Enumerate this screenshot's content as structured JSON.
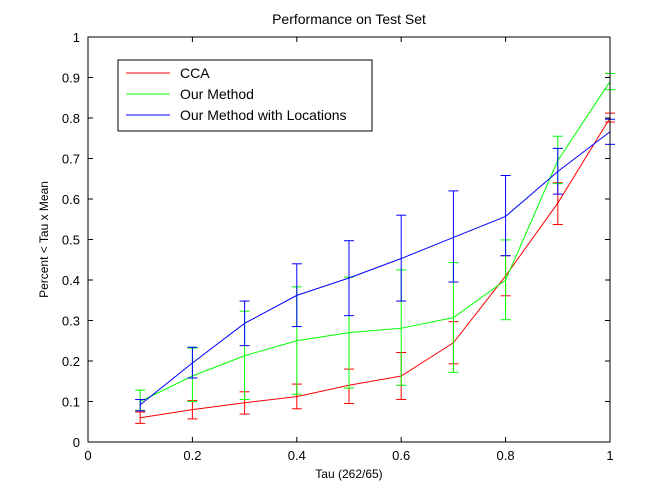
{
  "chart_data": {
    "type": "line",
    "title": "Performance on Test Set",
    "xlabel": "Tau (262/65)",
    "ylabel": "Percent < Tau x Mean",
    "xlim": [
      0,
      1
    ],
    "ylim": [
      0,
      1
    ],
    "xticks": [
      0,
      0.2,
      0.4,
      0.6,
      0.8,
      1
    ],
    "xtick_labels": [
      "0",
      "0.2",
      "0.4",
      "0.6",
      "0.8",
      "1"
    ],
    "yticks": [
      0,
      0.1,
      0.2,
      0.3,
      0.4,
      0.5,
      0.6,
      0.7,
      0.8,
      0.9,
      1
    ],
    "ytick_labels": [
      "0",
      "0.1",
      "0.2",
      "0.3",
      "0.4",
      "0.5",
      "0.6",
      "0.7",
      "0.8",
      "0.9",
      "1"
    ],
    "grid": false,
    "legend_position": "top-left",
    "x": [
      0.1,
      0.2,
      0.3,
      0.4,
      0.5,
      0.6,
      0.7,
      0.8,
      0.9,
      1.0
    ],
    "series": [
      {
        "name": "CCA",
        "color": "#ff0000",
        "values": [
          0.06,
          0.08,
          0.097,
          0.112,
          0.14,
          0.163,
          0.245,
          0.41,
          0.59,
          0.8
        ],
        "error_low": [
          0.046,
          0.057,
          0.069,
          0.082,
          0.095,
          0.105,
          0.193,
          0.361,
          0.537,
          0.79
        ],
        "error_high": [
          0.074,
          0.102,
          0.124,
          0.143,
          0.18,
          0.221,
          0.297,
          0.46,
          0.64,
          0.812
        ]
      },
      {
        "name": "Our Method",
        "color": "#00ff00",
        "values": [
          0.1,
          0.163,
          0.213,
          0.25,
          0.27,
          0.281,
          0.307,
          0.4,
          0.695,
          0.89
        ],
        "error_low": [
          0.078,
          0.1,
          0.105,
          0.118,
          0.133,
          0.14,
          0.172,
          0.302,
          0.638,
          0.87
        ],
        "error_high": [
          0.128,
          0.232,
          0.323,
          0.383,
          0.407,
          0.425,
          0.443,
          0.499,
          0.755,
          0.91
        ]
      },
      {
        "name": "Our Method with Locations",
        "color": "#0000ff",
        "values": [
          0.092,
          0.195,
          0.293,
          0.362,
          0.405,
          0.453,
          0.505,
          0.557,
          0.668,
          0.766
        ],
        "error_low": [
          0.077,
          0.158,
          0.238,
          0.285,
          0.312,
          0.348,
          0.395,
          0.46,
          0.612,
          0.735
        ],
        "error_high": [
          0.105,
          0.234,
          0.348,
          0.44,
          0.497,
          0.56,
          0.62,
          0.658,
          0.725,
          0.797
        ]
      }
    ]
  }
}
